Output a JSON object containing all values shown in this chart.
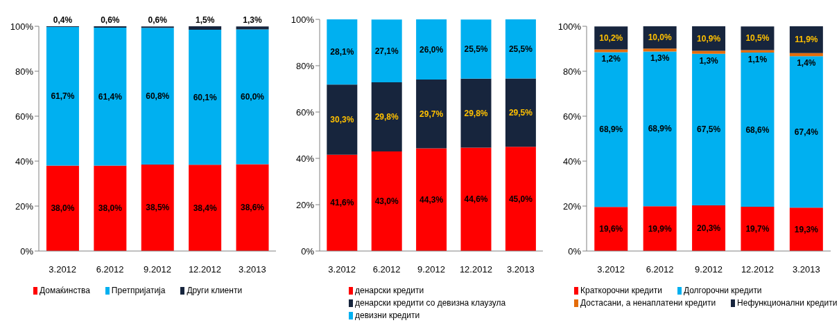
{
  "chart_data": [
    {
      "type": "bar",
      "stacked": true,
      "legend": "bottom",
      "categories": [
        "3.2012",
        "6.2012",
        "9.2012",
        "12.2012",
        "3.2013"
      ],
      "ylim": [
        0,
        100
      ],
      "yticks": [
        {
          "value": 0,
          "label": "0%"
        },
        {
          "value": 20,
          "label": "20%"
        },
        {
          "value": 40,
          "label": "40%"
        },
        {
          "value": 60,
          "label": "60%"
        },
        {
          "value": 80,
          "label": "80%"
        },
        {
          "value": 100,
          "label": "100%"
        }
      ],
      "series": [
        {
          "name": "Домаќинства",
          "color": "#ff0000",
          "values": [
            38.0,
            38.0,
            38.5,
            38.4,
            38.6
          ],
          "value_labels": [
            "38,0%",
            "38,0%",
            "38,5%",
            "38,4%",
            "38,6%"
          ]
        },
        {
          "name": "Претпријатија",
          "color": "#00b0f0",
          "values": [
            61.7,
            61.4,
            60.8,
            60.1,
            60.0
          ],
          "value_labels": [
            "61,7%",
            "61,4%",
            "60,8%",
            "60,1%",
            "60,0%"
          ]
        },
        {
          "name": "Други клиенти",
          "color": "#17253d",
          "values": [
            0.4,
            0.6,
            0.6,
            1.5,
            1.3
          ],
          "value_labels": [
            "0,4%",
            "0,6%",
            "0,6%",
            "1,5%",
            "1,3%"
          ]
        }
      ]
    },
    {
      "type": "bar",
      "stacked": true,
      "legend": "bottom",
      "categories": [
        "3.2012",
        "6.2012",
        "9.2012",
        "12.2012",
        "3.2013"
      ],
      "ylim": [
        0,
        100
      ],
      "yticks": [
        {
          "value": 0,
          "label": "0%"
        },
        {
          "value": 20,
          "label": "20%"
        },
        {
          "value": 40,
          "label": "40%"
        },
        {
          "value": 60,
          "label": "60%"
        },
        {
          "value": 80,
          "label": "80%"
        },
        {
          "value": 100,
          "label": "100%"
        }
      ],
      "series": [
        {
          "name": "денарски кредити",
          "color": "#ff0000",
          "values": [
            41.6,
            43.0,
            44.3,
            44.6,
            45.0
          ],
          "value_labels": [
            "41,6%",
            "43,0%",
            "44,3%",
            "44,6%",
            "45,0%"
          ]
        },
        {
          "name": "денарски кредити со девизна клаузула",
          "color": "#17253d",
          "values": [
            30.3,
            29.8,
            29.7,
            29.8,
            29.5
          ],
          "value_labels": [
            "30,3%",
            "29,8%",
            "29,7%",
            "29,8%",
            "29,5%"
          ]
        },
        {
          "name": "девизни кредити",
          "color": "#00b0f0",
          "values": [
            28.1,
            27.1,
            26.0,
            25.5,
            25.5
          ],
          "value_labels": [
            "28,1%",
            "27,1%",
            "26,0%",
            "25,5%",
            "25,5%"
          ]
        }
      ]
    },
    {
      "type": "bar",
      "stacked": true,
      "legend": "bottom",
      "categories": [
        "3.2012",
        "6.2012",
        "9.2012",
        "12.2012",
        "3.2013"
      ],
      "ylim": [
        0,
        100
      ],
      "yticks": [
        {
          "value": 0,
          "label": "0%"
        },
        {
          "value": 20,
          "label": "20%"
        },
        {
          "value": 40,
          "label": "40%"
        },
        {
          "value": 60,
          "label": "60%"
        },
        {
          "value": 80,
          "label": "80%"
        },
        {
          "value": 100,
          "label": "100%"
        }
      ],
      "series": [
        {
          "name": "Краткорочни кредити",
          "color": "#ff0000",
          "values": [
            19.6,
            19.9,
            20.3,
            19.7,
            19.3
          ],
          "value_labels": [
            "19,6%",
            "19,9%",
            "20,3%",
            "19,7%",
            "19,3%"
          ]
        },
        {
          "name": "Долгорочни кредити",
          "color": "#00b0f0",
          "values": [
            68.9,
            68.9,
            67.5,
            68.6,
            67.4
          ],
          "value_labels": [
            "68,9%",
            "68,9%",
            "67,5%",
            "68,6%",
            "67,4%"
          ]
        },
        {
          "name": "Достасани, а ненаплатени кредити",
          "color": "#e46c0a",
          "values": [
            1.2,
            1.3,
            1.3,
            1.1,
            1.4
          ],
          "value_labels": [
            "1,2%",
            "1,3%",
            "1,3%",
            "1,1%",
            "1,4%"
          ]
        },
        {
          "name": "Нефункционални кредити",
          "color": "#17253d",
          "values": [
            10.2,
            10.0,
            10.9,
            10.5,
            11.9
          ],
          "value_labels": [
            "10,2%",
            "10,0%",
            "10,9%",
            "10,5%",
            "11,9%"
          ]
        }
      ]
    }
  ]
}
